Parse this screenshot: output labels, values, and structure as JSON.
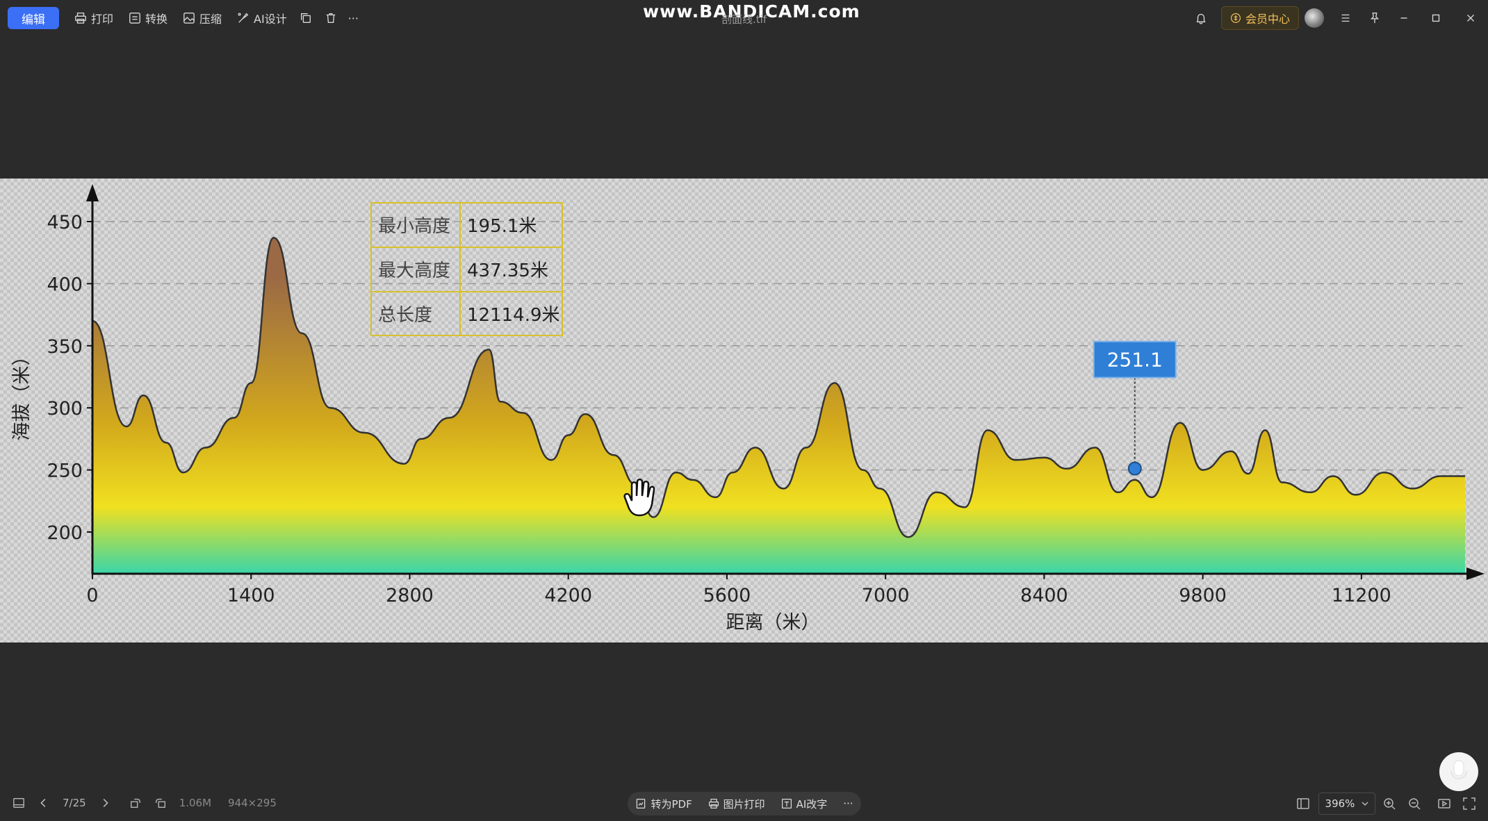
{
  "toolbar": {
    "edit_label": "编辑",
    "print_label": "打印",
    "convert_label": "转换",
    "compress_label": "压缩",
    "ai_design_label": "AI设计",
    "more_label": "···"
  },
  "watermark": "www.BANDICAM.com",
  "doc_name": "剖面线.tif",
  "member_label": "会员中心",
  "chart_data": {
    "type": "area",
    "xlabel": "距离（米）",
    "ylabel": "海拔（米）",
    "x_ticks": [
      "0",
      "1400",
      "2800",
      "4200",
      "5600",
      "7000",
      "8400",
      "9800",
      "11200"
    ],
    "y_ticks": [
      "200",
      "250",
      "300",
      "350",
      "400",
      "450"
    ],
    "xlim": [
      0,
      12114.9
    ],
    "ylim": [
      165,
      470
    ],
    "grid": "horizontal dashed",
    "x": [
      0,
      300,
      450,
      650,
      800,
      1000,
      1250,
      1400,
      1600,
      1850,
      2100,
      2400,
      2750,
      2900,
      3150,
      3500,
      3600,
      3800,
      4050,
      4200,
      4350,
      4600,
      4800,
      4950,
      5150,
      5300,
      5500,
      5650,
      5850,
      6100,
      6300,
      6550,
      6800,
      6950,
      7200,
      7450,
      7700,
      7900,
      8150,
      8400,
      8600,
      8850,
      9050,
      9200,
      9350,
      9600,
      9800,
      10050,
      10200,
      10350,
      10500,
      10750,
      10950,
      11150,
      11400,
      11650,
      11900,
      12114.9
    ],
    "values": [
      370,
      285,
      310,
      272,
      248,
      268,
      292,
      320,
      437,
      360,
      300,
      280,
      255,
      275,
      292,
      347,
      305,
      296,
      258,
      278,
      295,
      262,
      238,
      212,
      248,
      242,
      228,
      248,
      268,
      235,
      268,
      320,
      250,
      235,
      196,
      232,
      220,
      282,
      258,
      260,
      251,
      268,
      232,
      242,
      228,
      288,
      250,
      265,
      247,
      282,
      240,
      232,
      245,
      230,
      248,
      235,
      245,
      245
    ],
    "table": [
      {
        "label": "最小高度",
        "value": "195.1米"
      },
      {
        "label": "最大高度",
        "value": "437.35米"
      },
      {
        "label": "总长度",
        "value": "12114.9米"
      }
    ],
    "marker": {
      "x": 9200,
      "y": 251.1,
      "label": "251.1"
    },
    "colors": {
      "low": "#3ad6a8",
      "mid": "#f0e020",
      "high": "#9b6a45",
      "line": "#333333",
      "marker": "#2f7fd6"
    }
  },
  "bottom": {
    "page": "7/25",
    "file_size": "1.06M",
    "dimensions": "944×295",
    "to_pdf": "转为PDF",
    "image_print": "图片打印",
    "ai_text": "AI改字",
    "zoom": "396%"
  }
}
